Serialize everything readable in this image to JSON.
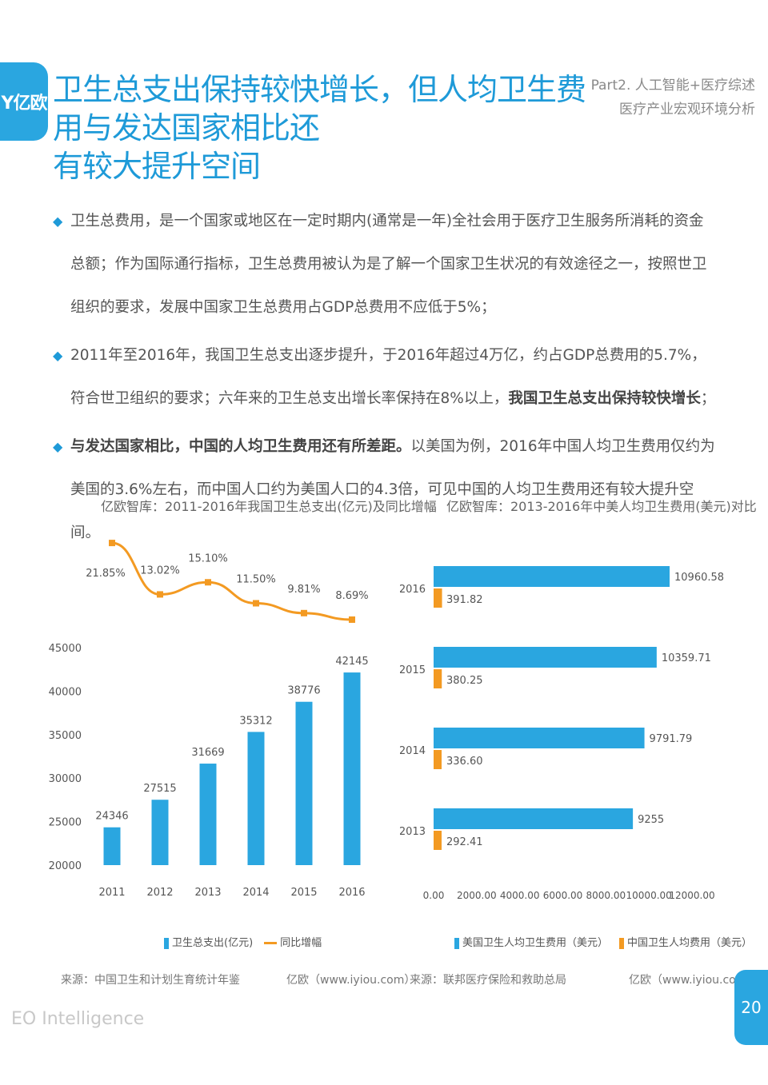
{
  "brand": {
    "logo_text": "Y亿欧",
    "footer": "EO Intelligence",
    "page_number": "20"
  },
  "header": {
    "title_line1": "卫生总支出保持较快增长，但人均卫生费用与发达国家相比还",
    "title_line2": "有较大提升空间",
    "part_line1": "Part2. 人工智能+医疗综述",
    "part_line2": "医疗产业宏观环境分析"
  },
  "bullets": [
    {
      "text_pre": "卫生总费用，是一个国家或地区在一定时期内(通常是一年)全社会用于医疗卫生服务所消耗的资金总额；作为国际通行指标，卫生总费用被认为是了解一个国家卫生状况的有效途径之一，按照世卫组织的要求，发展中国家卫生总费用占GDP总费用不应低于5%；",
      "bold": "",
      "text_post": ""
    },
    {
      "text_pre": "2011年至2016年，我国卫生总支出逐步提升，于2016年超过4万亿，约占GDP总费用的5.7%，符合世卫组织的要求；六年来的卫生总支出增长率保持在8%以上，",
      "bold": "我国卫生总支出保持较快增长",
      "text_post": "；"
    },
    {
      "text_pre": "",
      "bold": "与发达国家相比，中国的人均卫生费用还有所差距。",
      "text_post": "以美国为例，2016年中国人均卫生费用仅约为美国的3.6%左右，而中国人口约为美国人口的4.3倍，可见中国的人均卫生费用还有较大提升空间。"
    }
  ],
  "left_chart": {
    "title": "亿欧智库：2011-2016年我国卫生总支出(亿元)及同比增幅",
    "legend_bar": "卫生总支出(亿元)",
    "legend_line": "同比增幅",
    "source": "来源：中国卫生和计划生育统计年鉴",
    "credit": "亿欧（www.iyiou.com）"
  },
  "right_chart": {
    "title": "亿欧智库：2013-2016年中美人均卫生费用(美元)对比",
    "legend_us": "美国卫生人均卫生费用（美元）",
    "legend_cn": "中国卫生人均费用（美元）",
    "source": "来源：联邦医疗保险和救助总局",
    "credit": "亿欧（www.iyiou.com）"
  },
  "colors": {
    "accent": "#1e9ad8",
    "bar_blue": "#2aa6e0",
    "line_orange": "#f39a22"
  },
  "chart_data": [
    {
      "type": "bar",
      "title": "亿欧智库：2011-2016年我国卫生总支出(亿元)及同比增幅",
      "categories": [
        "2011",
        "2012",
        "2013",
        "2014",
        "2015",
        "2016"
      ],
      "series": [
        {
          "name": "卫生总支出(亿元)",
          "type": "bar",
          "values": [
            24346,
            27515,
            31669,
            35312,
            38776,
            42145
          ]
        },
        {
          "name": "同比增幅",
          "type": "line",
          "values": [
            21.85,
            13.02,
            15.1,
            11.5,
            9.81,
            8.69
          ],
          "labels": [
            "21.85%",
            "13.02%",
            "15.10%",
            "11.50%",
            "9.81%",
            "8.69%"
          ]
        }
      ],
      "yticks": [
        "20000",
        "25000",
        "30000",
        "35000",
        "40000",
        "45000"
      ],
      "ylim": [
        20000,
        45000
      ]
    },
    {
      "type": "bar",
      "orientation": "horizontal",
      "title": "亿欧智库：2013-2016年中美人均卫生费用(美元)对比",
      "categories": [
        "2016",
        "2015",
        "2014",
        "2013"
      ],
      "series": [
        {
          "name": "美国卫生人均卫生费用（美元）",
          "values": [
            10960.58,
            10359.71,
            9791.79,
            9255
          ],
          "labels": [
            "10960.58",
            "10359.71",
            "9791.79",
            "9255"
          ]
        },
        {
          "name": "中国卫生人均费用（美元）",
          "values": [
            391.82,
            380.25,
            336.6,
            292.41
          ],
          "labels": [
            "391.82",
            "380.25",
            "336.60",
            "292.41"
          ]
        }
      ],
      "xticks": [
        "0.00",
        "2000.00",
        "4000.00",
        "6000.00",
        "8000.00",
        "10000.00",
        "12000.00"
      ],
      "xlim": [
        0,
        12000
      ]
    }
  ]
}
